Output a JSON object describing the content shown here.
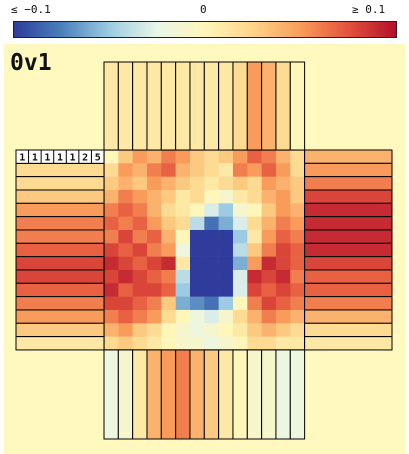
{
  "colorbar": {
    "min_label": "≤ −0.1",
    "mid_label": "0",
    "max_label": "≥ 0.1",
    "vmin": -0.1,
    "vmax": 0.1,
    "colors": [
      "#2f3c9b",
      "#4b80bc",
      "#9dcbe3",
      "#e9f6e9",
      "#fff6b9",
      "#fdd48a",
      "#f99c5b",
      "#e2523c",
      "#b40f2b"
    ]
  },
  "panel": {
    "title": "0v1",
    "background": "#fff9c0"
  },
  "chart_data": {
    "type": "heatmap",
    "title": "0v1",
    "row_labels": [
      "1",
      "1",
      "1",
      "1",
      "1",
      "2",
      "5"
    ],
    "heatmap": [
      [
        0.0,
        0.03,
        0.05,
        0.04,
        0.06,
        0.05,
        0.03,
        0.02,
        0.03,
        0.05,
        0.07,
        0.06,
        0.04,
        0.02
      ],
      [
        0.02,
        0.05,
        0.04,
        0.06,
        0.07,
        0.04,
        0.03,
        0.02,
        0.01,
        0.06,
        0.05,
        0.07,
        0.05,
        0.02
      ],
      [
        0.03,
        0.04,
        0.03,
        0.05,
        0.04,
        0.03,
        0.02,
        0.01,
        0.02,
        0.03,
        0.02,
        0.05,
        0.04,
        0.03
      ],
      [
        0.04,
        0.06,
        0.05,
        0.04,
        0.03,
        0.01,
        0.02,
        0.0,
        -0.01,
        0.01,
        0.02,
        0.04,
        0.05,
        0.03
      ],
      [
        0.06,
        0.07,
        0.06,
        0.04,
        0.02,
        0.01,
        0.0,
        -0.03,
        -0.05,
        -0.01,
        0.0,
        0.03,
        0.05,
        0.04
      ],
      [
        0.07,
        0.06,
        0.07,
        0.05,
        0.03,
        0.02,
        -0.04,
        -0.08,
        -0.06,
        -0.03,
        0.02,
        0.04,
        0.06,
        0.05
      ],
      [
        0.06,
        0.08,
        0.06,
        0.07,
        0.04,
        0.0,
        -0.1,
        -0.1,
        -0.1,
        -0.05,
        0.01,
        0.05,
        0.07,
        0.06
      ],
      [
        0.08,
        0.07,
        0.08,
        0.06,
        0.05,
        -0.02,
        -0.1,
        -0.1,
        -0.1,
        -0.04,
        0.03,
        0.06,
        0.08,
        0.07
      ],
      [
        0.09,
        0.08,
        0.07,
        0.08,
        0.09,
        0.01,
        -0.1,
        -0.1,
        -0.1,
        -0.06,
        0.05,
        0.09,
        0.08,
        0.07
      ],
      [
        0.08,
        0.09,
        0.08,
        0.07,
        0.06,
        -0.04,
        -0.1,
        -0.1,
        -0.1,
        -0.03,
        0.09,
        0.08,
        0.09,
        0.06
      ],
      [
        0.09,
        0.07,
        0.08,
        0.08,
        0.07,
        -0.05,
        -0.1,
        -0.1,
        -0.1,
        -0.03,
        0.08,
        0.07,
        0.08,
        0.07
      ],
      [
        0.08,
        0.08,
        0.07,
        0.06,
        0.03,
        -0.06,
        -0.07,
        -0.08,
        -0.05,
        0.0,
        0.06,
        0.08,
        0.07,
        0.06
      ],
      [
        0.06,
        0.07,
        0.06,
        0.05,
        0.02,
        0.0,
        -0.02,
        -0.03,
        -0.01,
        0.02,
        0.04,
        0.06,
        0.05,
        0.04
      ],
      [
        0.04,
        0.05,
        0.03,
        0.02,
        0.0,
        -0.01,
        -0.02,
        -0.01,
        0.0,
        0.01,
        0.03,
        0.04,
        0.03,
        0.02
      ],
      [
        0.02,
        0.03,
        0.02,
        0.01,
        0.0,
        -0.01,
        -0.01,
        -0.02,
        -0.01,
        0.0,
        0.02,
        0.02,
        0.01,
        0.01
      ]
    ],
    "top_bars": [
      0.01,
      0.01,
      0.01,
      0.01,
      0.01,
      0.01,
      0.01,
      0.01,
      0.01,
      0.02,
      0.05,
      0.04,
      0.02,
      0.0
    ],
    "bottom_bars": [
      -0.02,
      -0.01,
      0.01,
      0.04,
      0.05,
      0.06,
      0.04,
      0.03,
      0.01,
      0.0,
      -0.01,
      -0.01,
      -0.02,
      -0.02
    ],
    "left_bars": [
      0.01,
      0.02,
      0.02,
      0.03,
      0.05,
      0.06,
      0.06,
      0.07,
      0.08,
      0.08,
      0.07,
      0.06,
      0.05,
      0.03,
      0.01
    ],
    "right_bars": [
      0.04,
      0.05,
      0.06,
      0.08,
      0.09,
      0.09,
      0.09,
      0.09,
      0.08,
      0.07,
      0.07,
      0.06,
      0.04,
      0.02,
      0.01
    ]
  }
}
